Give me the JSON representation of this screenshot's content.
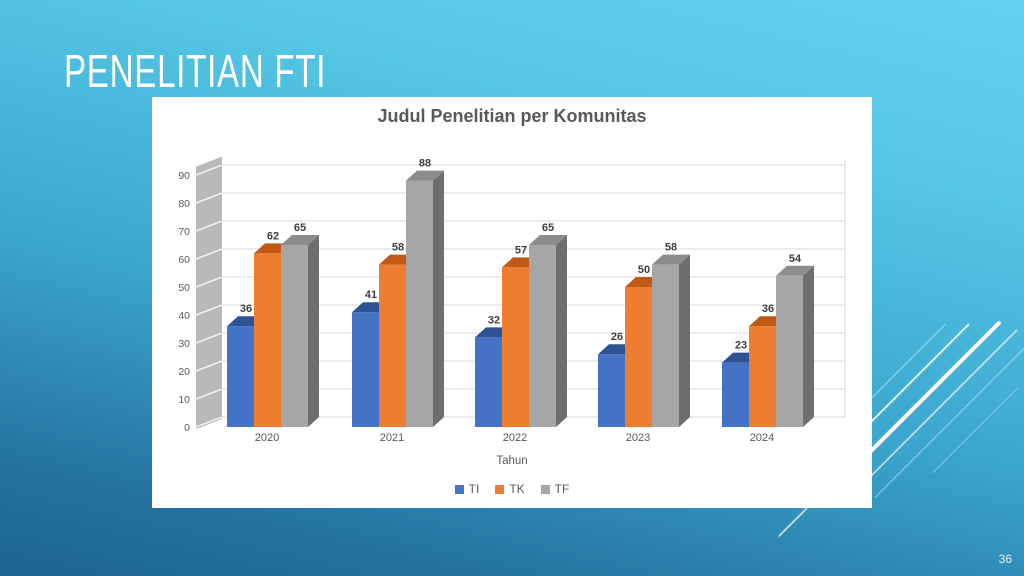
{
  "slide": {
    "title": "PENELITIAN FTI",
    "page_number": "36"
  },
  "chart_data": {
    "type": "bar",
    "style": "3d-clustered-column",
    "title": "Judul Penelitian per Komunitas",
    "xlabel": "Tahun",
    "ylabel": "",
    "categories": [
      "2020",
      "2021",
      "2022",
      "2023",
      "2024"
    ],
    "series": [
      {
        "name": "TI",
        "color": "#4472C4",
        "color_top": "#2E5395",
        "color_side": "#27457C",
        "values": [
          36,
          41,
          32,
          26,
          23
        ]
      },
      {
        "name": "TK",
        "color": "#ED7D31",
        "color_top": "#C05A14",
        "color_side": "#9C4A12",
        "values": [
          62,
          58,
          57,
          50,
          36
        ]
      },
      {
        "name": "TF",
        "color": "#A6A6A6",
        "color_top": "#8C8C8C",
        "color_side": "#6E6E6E",
        "values": [
          65,
          88,
          65,
          58,
          54
        ]
      }
    ],
    "axis": {
      "ymin": 0,
      "ymax": 90,
      "ystep": 10
    },
    "grid": true,
    "legend_position": "bottom",
    "wall_color": "#B9B9B9",
    "gridline_color": "#D9D9D9",
    "tick_color": "#595959",
    "data_label_color": "#3F3F3F"
  }
}
